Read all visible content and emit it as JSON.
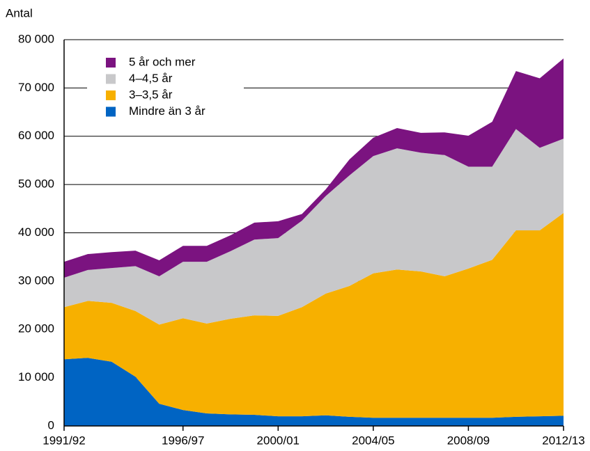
{
  "chart_data": {
    "type": "stacked_area",
    "y_label": "Antal",
    "categories": [
      "1991/92",
      null,
      null,
      null,
      null,
      "1996/97",
      null,
      null,
      null,
      "2000/01",
      null,
      null,
      null,
      "2004/05",
      null,
      null,
      null,
      "2008/09",
      null,
      null,
      null,
      "2012/13"
    ],
    "series": [
      {
        "name": "Mindre än 3 år",
        "color": "#0064c3",
        "values": [
          13800,
          14100,
          13300,
          10200,
          4600,
          3300,
          2600,
          2400,
          2300,
          2000,
          2000,
          2200,
          1900,
          1700,
          1700,
          1700,
          1700,
          1700,
          1700,
          1900,
          2000,
          2100
        ]
      },
      {
        "name": "3–3,5 år",
        "color": "#f7b000",
        "values": [
          10800,
          11800,
          12200,
          13600,
          16400,
          19000,
          18600,
          19800,
          20600,
          20800,
          22600,
          25200,
          27100,
          29900,
          30700,
          30300,
          29300,
          30900,
          32700,
          38600,
          38500,
          42000
        ]
      },
      {
        "name": "4–4,5 år",
        "color": "#c8c8ca",
        "values": [
          6100,
          6400,
          7200,
          9300,
          10000,
          11700,
          12800,
          14000,
          15700,
          16100,
          17900,
          20200,
          22900,
          24300,
          25100,
          24600,
          25100,
          21100,
          19300,
          21000,
          17100,
          15400
        ]
      },
      {
        "name": "5 år och mer",
        "color": "#7b1380",
        "values": [
          3300,
          3300,
          3300,
          3200,
          3300,
          3300,
          3300,
          3300,
          3500,
          3500,
          1400,
          1400,
          3300,
          3800,
          4200,
          4100,
          4700,
          6400,
          9300,
          12000,
          14400,
          16600
        ]
      }
    ],
    "ylim": [
      0,
      80000
    ],
    "yticks": [
      0,
      {
        "value": 10000,
        "label": "10 000"
      },
      {
        "value": 20000,
        "label": "20 000"
      },
      {
        "value": 30000,
        "label": "30 000"
      },
      {
        "value": 40000,
        "label": "40 000"
      },
      {
        "value": 50000,
        "label": "50 000"
      },
      {
        "value": 60000,
        "label": "60 000"
      },
      {
        "value": 70000,
        "label": "70 000"
      },
      {
        "value": 80000,
        "label": "80 000"
      }
    ],
    "grid": true,
    "legend": "upper left"
  }
}
